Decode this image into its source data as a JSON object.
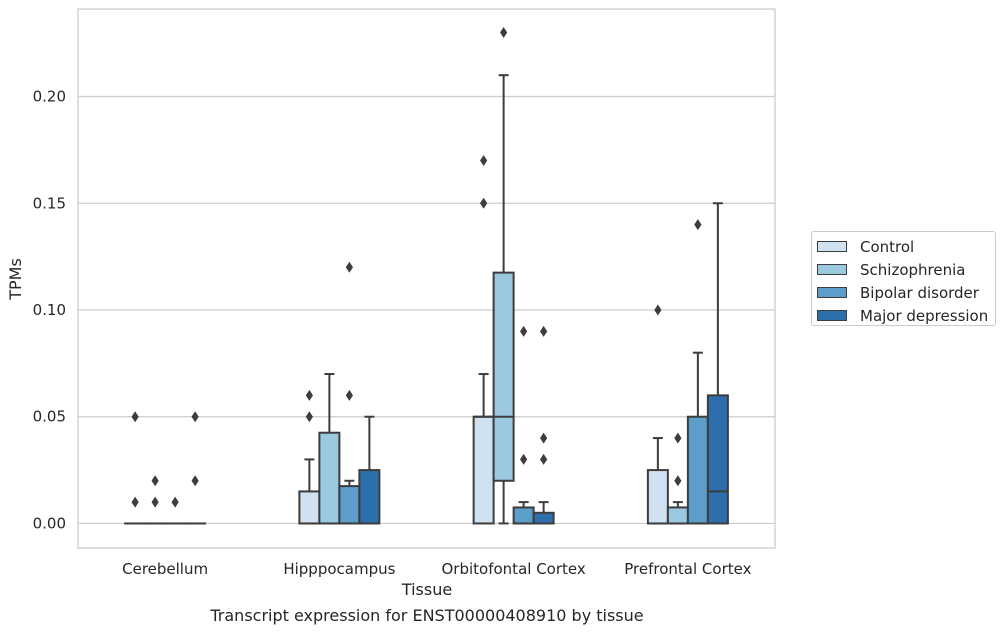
{
  "chart_data": {
    "type": "boxplot",
    "xlabel": "Tissue",
    "ylabel": "TPMs",
    "ylim": [
      -0.0115,
      0.241
    ],
    "yticks": [
      0.0,
      0.05,
      0.1,
      0.15,
      0.2
    ],
    "ytick_labels": [
      "0.00",
      "0.05",
      "0.10",
      "0.15",
      "0.20"
    ],
    "grid": true,
    "legend_position": "right-outside",
    "categories": [
      "Cerebellum",
      "Hipppocampus",
      "Orbitofontal Cortex",
      "Prefrontal Cortex"
    ],
    "series": [
      {
        "name": "Control",
        "color": "#d0e2f2",
        "boxes": [
          {
            "q1": 0,
            "median": 0,
            "q3": 0,
            "whisker_low": 0,
            "whisker_high": 0,
            "outliers": [
              0.05,
              0.01
            ]
          },
          {
            "q1": 0,
            "median": 0,
            "q3": 0.015,
            "whisker_low": 0,
            "whisker_high": 0.03,
            "outliers": [
              0.05,
              0.06
            ]
          },
          {
            "q1": 0,
            "median": 0.05,
            "q3": 0.05,
            "whisker_low": 0,
            "whisker_high": 0.07,
            "outliers": [
              0.15,
              0.17
            ]
          },
          {
            "q1": 0,
            "median": 0,
            "q3": 0.025,
            "whisker_low": 0,
            "whisker_high": 0.04,
            "outliers": [
              0.1
            ]
          }
        ]
      },
      {
        "name": "Schizophrenia",
        "color": "#9ac8e0",
        "boxes": [
          {
            "q1": 0,
            "median": 0,
            "q3": 0,
            "whisker_low": 0,
            "whisker_high": 0,
            "outliers": [
              0.01,
              0.02
            ]
          },
          {
            "q1": 0,
            "median": 0,
            "q3": 0.0425,
            "whisker_low": 0,
            "whisker_high": 0.07,
            "outliers": []
          },
          {
            "q1": 0.02,
            "median": 0.05,
            "q3": 0.1175,
            "whisker_low": 0,
            "whisker_high": 0.21,
            "outliers": [
              0.23
            ]
          },
          {
            "q1": 0,
            "median": 0,
            "q3": 0.0075,
            "whisker_low": 0,
            "whisker_high": 0.01,
            "outliers": [
              0.02,
              0.04
            ]
          }
        ]
      },
      {
        "name": "Bipolar disorder",
        "color": "#5a9ec9",
        "boxes": [
          {
            "q1": 0,
            "median": 0,
            "q3": 0,
            "whisker_low": 0,
            "whisker_high": 0,
            "outliers": [
              0.01
            ]
          },
          {
            "q1": 0,
            "median": 0,
            "q3": 0.0175,
            "whisker_low": 0,
            "whisker_high": 0.02,
            "outliers": [
              0.06,
              0.12
            ]
          },
          {
            "q1": 0,
            "median": 0,
            "q3": 0.0075,
            "whisker_low": 0,
            "whisker_high": 0.01,
            "outliers": [
              0.03,
              0.09
            ]
          },
          {
            "q1": 0,
            "median": 0,
            "q3": 0.05,
            "whisker_low": 0,
            "whisker_high": 0.08,
            "outliers": [
              0.14
            ]
          }
        ]
      },
      {
        "name": "Major depression",
        "color": "#2d6fad",
        "boxes": [
          {
            "q1": 0,
            "median": 0,
            "q3": 0,
            "whisker_low": 0,
            "whisker_high": 0,
            "outliers": [
              0.02,
              0.05
            ]
          },
          {
            "q1": 0,
            "median": 0,
            "q3": 0.025,
            "whisker_low": 0,
            "whisker_high": 0.05,
            "outliers": []
          },
          {
            "q1": 0,
            "median": 0,
            "q3": 0.005,
            "whisker_low": 0,
            "whisker_high": 0.01,
            "outliers": [
              0.03,
              0.04,
              0.09
            ]
          },
          {
            "q1": 0,
            "median": 0.015,
            "q3": 0.06,
            "whisker_low": 0,
            "whisker_high": 0.15,
            "outliers": []
          }
        ]
      }
    ]
  },
  "caption": "Transcript expression for ENST00000408910 by tissue"
}
